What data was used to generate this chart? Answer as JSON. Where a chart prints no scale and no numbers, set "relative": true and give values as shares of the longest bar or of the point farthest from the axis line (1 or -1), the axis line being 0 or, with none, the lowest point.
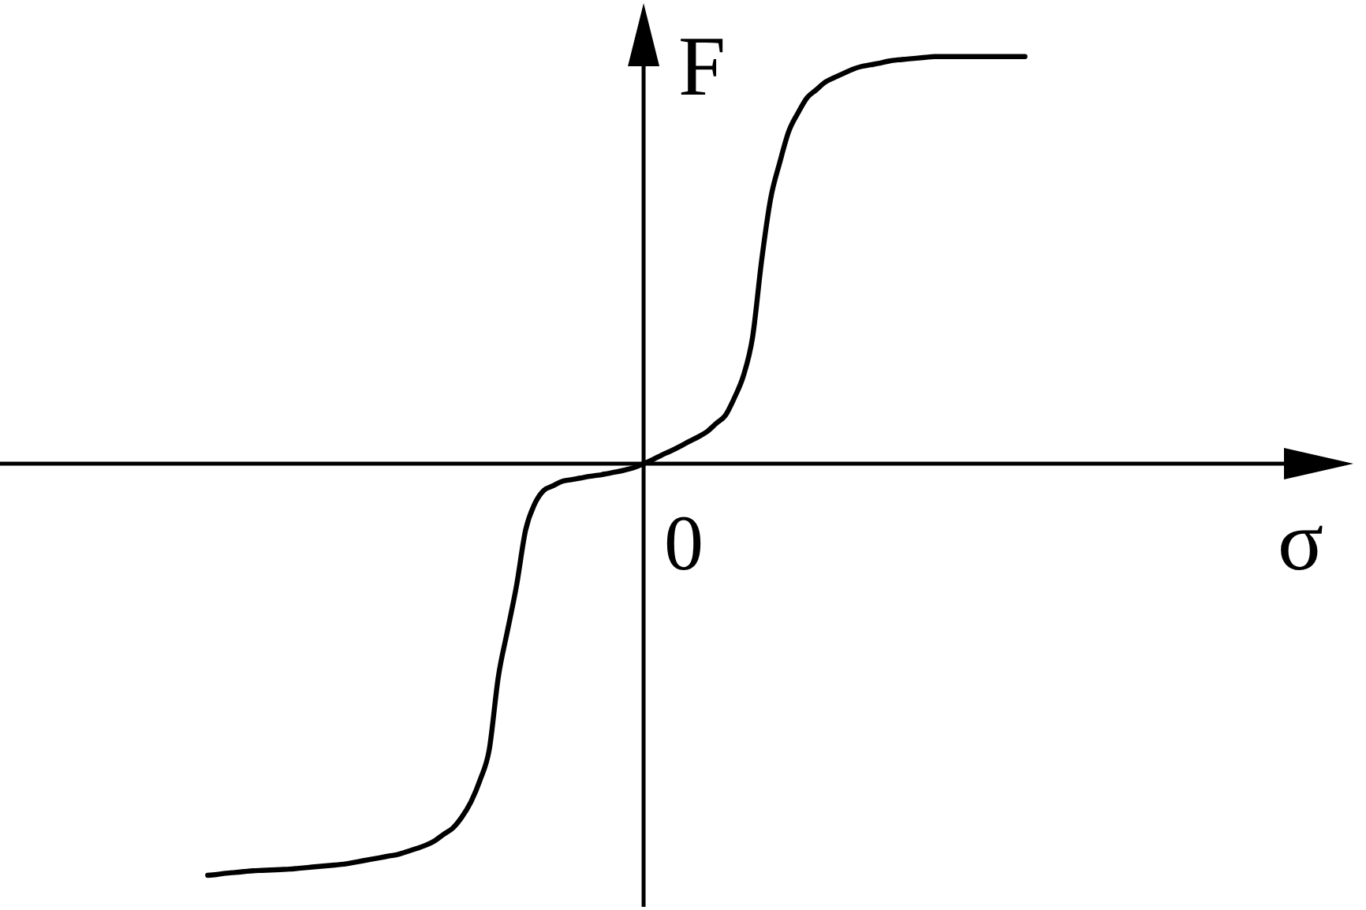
{
  "chart_data": {
    "type": "line",
    "xlabel": "σ",
    "ylabel": "F",
    "relative": true,
    "categories": [
      null,
      null,
      null,
      null,
      null,
      null,
      null,
      null,
      null,
      null,
      null,
      null,
      null,
      null,
      null,
      null,
      null,
      null,
      null,
      null,
      null,
      null,
      null,
      null,
      null,
      null,
      null,
      null,
      null,
      null,
      null,
      null,
      null,
      null,
      null,
      null,
      null,
      null,
      null,
      null,
      null,
      null,
      null,
      null,
      null,
      null,
      null,
      null,
      null,
      null,
      null,
      null,
      null,
      null,
      null,
      null,
      null,
      null,
      null,
      null,
      null,
      null,
      null,
      null,
      null,
      null,
      null,
      null,
      null,
      null,
      null,
      null,
      null,
      null,
      null,
      null,
      null,
      null,
      null,
      null,
      null,
      null,
      null,
      null,
      null,
      null,
      null,
      null,
      null,
      null,
      null
    ],
    "series": [
      {
        "color": "#000000",
        "values": [
          -1.0,
          -0.998,
          -0.995,
          -0.993,
          -0.991,
          -0.989,
          -0.988,
          -0.987,
          -0.986,
          -0.985,
          -0.983,
          -0.981,
          -0.979,
          -0.977,
          -0.975,
          -0.973,
          -0.969,
          -0.965,
          -0.961,
          -0.957,
          -0.953,
          -0.949,
          -0.942,
          -0.935,
          -0.927,
          -0.916,
          -0.9,
          -0.885,
          -0.858,
          -0.821,
          -0.768,
          -0.695,
          -0.518,
          -0.407,
          -0.297,
          -0.162,
          -0.098,
          -0.065,
          -0.054,
          -0.043,
          -0.039,
          -0.035,
          -0.031,
          -0.028,
          -0.024,
          -0.02,
          -0.015,
          -0.009,
          0,
          0.01,
          0.021,
          0.031,
          0.042,
          0.054,
          0.065,
          0.078,
          0.098,
          0.117,
          0.16,
          0.214,
          0.307,
          0.494,
          0.645,
          0.732,
          0.808,
          0.852,
          0.889,
          0.908,
          0.927,
          0.938,
          0.948,
          0.958,
          0.965,
          0.969,
          0.973,
          0.978,
          0.981,
          0.983,
          0.985,
          0.987,
          0.989,
          0.989,
          0.989,
          0.989,
          0.989,
          0.989,
          0.989,
          0.989,
          0.989,
          0.989,
          0.989
        ]
      }
    ],
    "line_style": "solid",
    "annotations": [
      "0"
    ]
  }
}
